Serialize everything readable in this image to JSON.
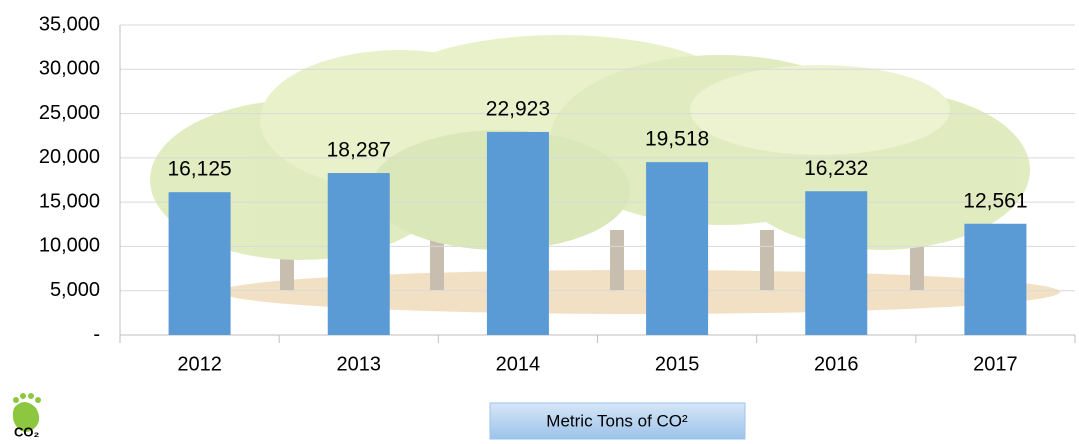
{
  "chart_data": {
    "type": "bar",
    "categories": [
      "2012",
      "2013",
      "2014",
      "2015",
      "2016",
      "2017"
    ],
    "series": [
      {
        "name": "Metric Tons of CO²",
        "color": "#5b9bd5",
        "values": [
          16125,
          18287,
          22923,
          19518,
          16232,
          12561
        ],
        "value_labels": [
          "16,125",
          "18,287",
          "22,923",
          "19,518",
          "16,232",
          "12,561"
        ]
      }
    ],
    "ylim": [
      0,
      35000
    ],
    "yticks": [
      {
        "value": 0,
        "label": "-"
      },
      {
        "value": 5000,
        "label": "5,000"
      },
      {
        "value": 10000,
        "label": "10,000"
      },
      {
        "value": 15000,
        "label": "15,000"
      },
      {
        "value": 20000,
        "label": "20,000"
      },
      {
        "value": 25000,
        "label": "25,000"
      },
      {
        "value": 30000,
        "label": "30,000"
      },
      {
        "value": 35000,
        "label": "35,000"
      }
    ],
    "grid": true,
    "legend": "bottom"
  },
  "logo": "CO₂"
}
